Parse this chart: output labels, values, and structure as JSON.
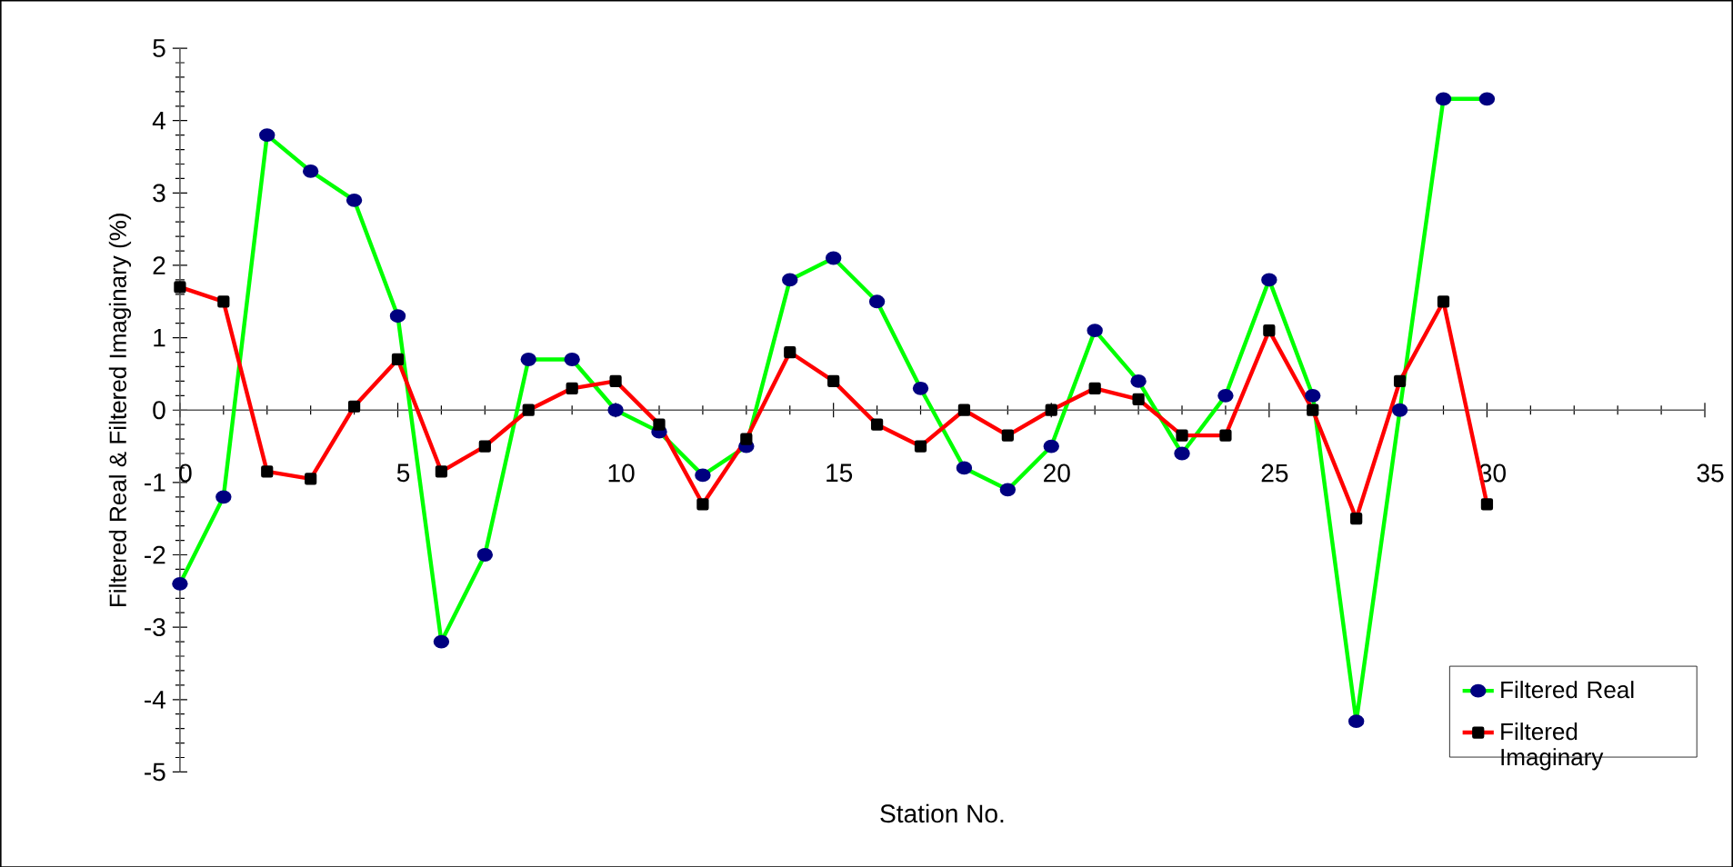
{
  "chart_data": {
    "type": "line",
    "xlabel": "Station No.",
    "ylabel": "Filtered Real & Filtered Imaginary (%)",
    "x": [
      0,
      1,
      2,
      3,
      4,
      5,
      6,
      7,
      8,
      9,
      10,
      11,
      12,
      13,
      14,
      15,
      16,
      17,
      18,
      19,
      20,
      21,
      22,
      23,
      24,
      25,
      26,
      27,
      28,
      29,
      30
    ],
    "series": [
      {
        "name": "Filtered Real",
        "color": "#00ff00",
        "marker": "circle",
        "values": [
          -2.4,
          -1.2,
          3.8,
          3.3,
          2.9,
          1.3,
          -3.2,
          -2.0,
          0.7,
          0.7,
          0,
          -0.3,
          -0.9,
          -0.5,
          1.8,
          2.1,
          1.5,
          0.3,
          -0.8,
          -1.1,
          -0.5,
          1.1,
          0.4,
          -0.6,
          0.2,
          1.8,
          0.2,
          -4.3,
          0,
          4.3,
          4.3
        ]
      },
      {
        "name": "Filtered Imaginary",
        "color": "#ff0000",
        "marker": "square",
        "values": [
          1.7,
          1.5,
          -0.85,
          -0.95,
          0.05,
          0.7,
          -0.85,
          -0.5,
          0,
          0.3,
          0.4,
          -0.2,
          -1.3,
          -0.4,
          0.8,
          0.4,
          -0.2,
          -0.5,
          0,
          -0.35,
          0,
          0.3,
          0.15,
          -0.35,
          -0.35,
          1.1,
          0,
          -1.5,
          0.4,
          1.5,
          -1.3
        ]
      }
    ],
    "xlim": [
      0,
      35
    ],
    "xticks": [
      0,
      5,
      10,
      15,
      20,
      25,
      30,
      35
    ],
    "ylim": [
      -5,
      5
    ],
    "yticks": [
      -5,
      -4,
      -3,
      -2,
      -1,
      0,
      1,
      2,
      3,
      4,
      5
    ],
    "grid": false,
    "legend": "bottom right",
    "line_style": "solid"
  }
}
